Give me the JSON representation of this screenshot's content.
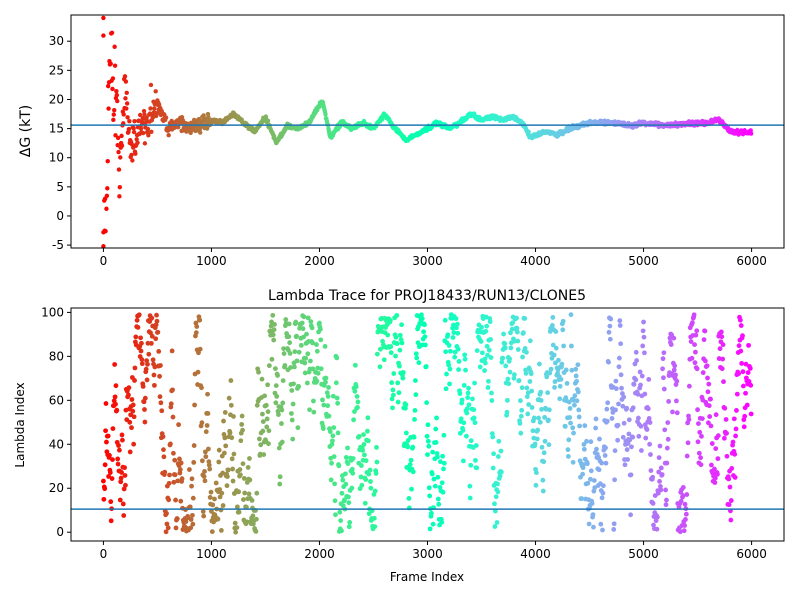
{
  "chart_data": [
    {
      "type": "scatter",
      "title": "",
      "xlabel": "",
      "ylabel": "ΔG (kT)",
      "xlim": [
        -300,
        6300
      ],
      "ylim": [
        -5.5,
        34.5
      ],
      "xticks": [
        0,
        1000,
        2000,
        3000,
        4000,
        5000,
        6000
      ],
      "yticks": [
        -5,
        0,
        5,
        10,
        15,
        20,
        25,
        30
      ],
      "hline": 15.6,
      "colormap": "rainbow (red at frame 0 → violet at frame 6000)",
      "n_frames": 6000,
      "anchor_points": [
        {
          "x": 0,
          "y": 34
        },
        {
          "x": 0,
          "y": -5.2
        },
        {
          "x": 0,
          "y": -2.8
        },
        {
          "x": 30,
          "y": 5.5
        },
        {
          "x": 60,
          "y": 30
        },
        {
          "x": 100,
          "y": 25
        },
        {
          "x": 150,
          "y": 8
        },
        {
          "x": 200,
          "y": 22
        },
        {
          "x": 250,
          "y": 11
        },
        {
          "x": 300,
          "y": 14
        },
        {
          "x": 400,
          "y": 16
        },
        {
          "x": 500,
          "y": 19.5
        },
        {
          "x": 600,
          "y": 15
        },
        {
          "x": 700,
          "y": 16
        },
        {
          "x": 800,
          "y": 15
        },
        {
          "x": 900,
          "y": 16
        },
        {
          "x": 1000,
          "y": 16.5
        },
        {
          "x": 1100,
          "y": 16
        },
        {
          "x": 1200,
          "y": 17.5
        },
        {
          "x": 1300,
          "y": 16
        },
        {
          "x": 1400,
          "y": 14.5
        },
        {
          "x": 1500,
          "y": 17
        },
        {
          "x": 1600,
          "y": 12.5
        },
        {
          "x": 1700,
          "y": 15.5
        },
        {
          "x": 1800,
          "y": 15
        },
        {
          "x": 1900,
          "y": 16
        },
        {
          "x": 2000,
          "y": 19
        },
        {
          "x": 2030,
          "y": 19.8
        },
        {
          "x": 2100,
          "y": 13.5
        },
        {
          "x": 2200,
          "y": 16
        },
        {
          "x": 2300,
          "y": 15
        },
        {
          "x": 2400,
          "y": 16
        },
        {
          "x": 2500,
          "y": 15
        },
        {
          "x": 2600,
          "y": 17.5
        },
        {
          "x": 2700,
          "y": 15
        },
        {
          "x": 2800,
          "y": 13
        },
        {
          "x": 2900,
          "y": 14
        },
        {
          "x": 3000,
          "y": 15
        },
        {
          "x": 3100,
          "y": 16
        },
        {
          "x": 3200,
          "y": 15
        },
        {
          "x": 3300,
          "y": 16
        },
        {
          "x": 3400,
          "y": 17.5
        },
        {
          "x": 3500,
          "y": 16.5
        },
        {
          "x": 3600,
          "y": 17
        },
        {
          "x": 3700,
          "y": 16.5
        },
        {
          "x": 3800,
          "y": 17
        },
        {
          "x": 3900,
          "y": 15.5
        },
        {
          "x": 3950,
          "y": 13.5
        },
        {
          "x": 4100,
          "y": 14.5
        },
        {
          "x": 4200,
          "y": 14
        },
        {
          "x": 4300,
          "y": 15
        },
        {
          "x": 4400,
          "y": 15.5
        },
        {
          "x": 4500,
          "y": 16
        },
        {
          "x": 4700,
          "y": 16
        },
        {
          "x": 4900,
          "y": 15.5
        },
        {
          "x": 5000,
          "y": 16
        },
        {
          "x": 5200,
          "y": 15.5
        },
        {
          "x": 5400,
          "y": 15.8
        },
        {
          "x": 5600,
          "y": 16
        },
        {
          "x": 5700,
          "y": 16.5
        },
        {
          "x": 5800,
          "y": 14.5
        },
        {
          "x": 6000,
          "y": 14.3
        }
      ]
    },
    {
      "type": "scatter",
      "title": "Lambda Trace for PROJ18433/RUN13/CLONE5",
      "xlabel": "Frame Index",
      "ylabel": "Lambda Index",
      "xlim": [
        -300,
        6300
      ],
      "ylim": [
        -4,
        102
      ],
      "xticks": [
        0,
        1000,
        2000,
        3000,
        4000,
        5000,
        6000
      ],
      "yticks": [
        0,
        20,
        40,
        60,
        80,
        100
      ],
      "hline": 10.5,
      "colormap": "rainbow (red at frame 0 → violet at frame 6000)",
      "n_frames": 6000,
      "value_range": [
        0,
        99
      ]
    }
  ]
}
